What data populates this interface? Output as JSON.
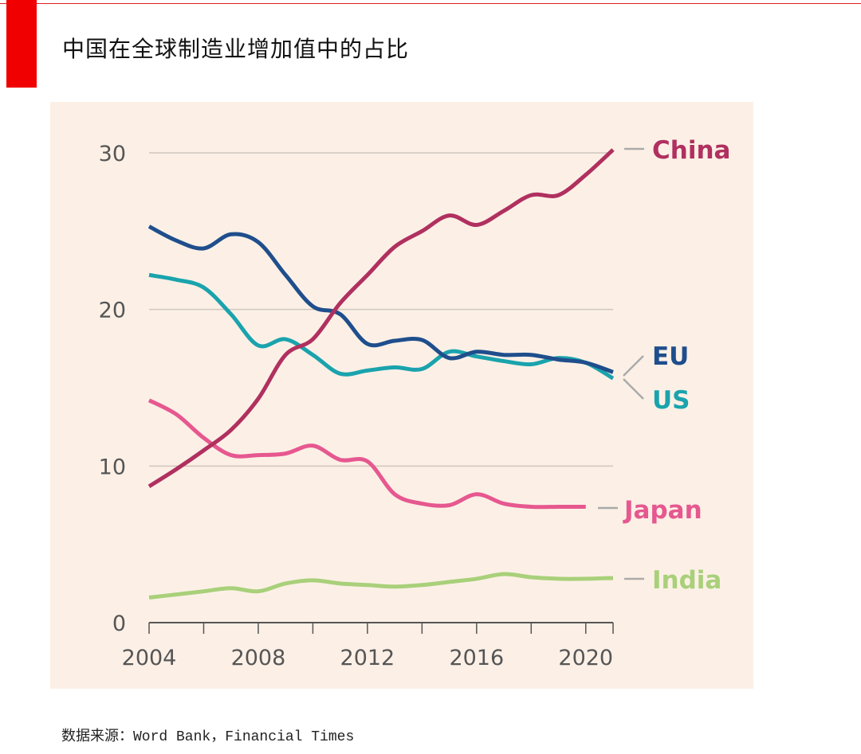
{
  "title": "中国在全球制造业增加值中的占比",
  "source": "数据来源：Word Bank，Financial Times",
  "colors": {
    "accent": "#f00000",
    "background": "#fcf0e6",
    "China": "#b0305f",
    "EU": "#1f4e8c",
    "US": "#1aa3ad",
    "Japan": "#e6588f",
    "India": "#a9d07a"
  },
  "chart_data": {
    "type": "line",
    "title": "中国在全球制造业增加值中的占比",
    "xlabel": "",
    "ylabel": "",
    "xlim": [
      2004,
      2021
    ],
    "ylim": [
      0,
      30
    ],
    "grid": true,
    "legend": "direct labels at right end",
    "x_ticks": [
      "2004",
      "2008",
      "2012",
      "2016",
      "2020"
    ],
    "y_ticks": [
      "0",
      "10",
      "20",
      "30"
    ],
    "x": [
      2004,
      2005,
      2006,
      2007,
      2008,
      2009,
      2010,
      2011,
      2012,
      2013,
      2014,
      2015,
      2016,
      2017,
      2018,
      2019,
      2020,
      2021
    ],
    "series": [
      {
        "name": "China",
        "values": [
          8.7,
          9.8,
          11.0,
          12.3,
          14.3,
          17.1,
          18.1,
          20.4,
          22.2,
          24.0,
          25.0,
          26.0,
          25.4,
          26.3,
          27.3,
          27.3,
          28.6,
          30.2
        ]
      },
      {
        "name": "EU",
        "values": [
          25.3,
          24.4,
          23.9,
          24.8,
          24.3,
          22.2,
          20.2,
          19.7,
          17.8,
          18.0,
          18.05,
          16.9,
          17.3,
          17.1,
          17.1,
          16.8,
          16.6,
          16.0
        ]
      },
      {
        "name": "US",
        "values": [
          22.2,
          21.9,
          21.4,
          19.7,
          17.7,
          18.1,
          17.1,
          15.9,
          16.1,
          16.3,
          16.2,
          17.3,
          17.0,
          16.7,
          16.5,
          16.9,
          16.6,
          15.6
        ]
      },
      {
        "name": "Japan",
        "values": [
          14.2,
          13.3,
          11.8,
          10.7,
          10.7,
          10.8,
          11.3,
          10.4,
          10.3,
          8.2,
          7.6,
          7.5,
          8.2,
          7.6,
          7.4,
          7.4,
          7.4,
          null
        ]
      },
      {
        "name": "India",
        "values": [
          1.6,
          1.8,
          2.0,
          2.2,
          2.0,
          2.5,
          2.7,
          2.5,
          2.4,
          2.3,
          2.4,
          2.6,
          2.8,
          3.1,
          2.9,
          2.8,
          2.8,
          2.85
        ]
      }
    ]
  }
}
